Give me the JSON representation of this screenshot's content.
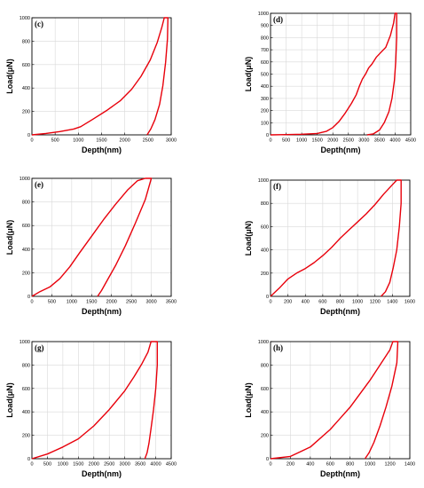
{
  "chart_data": [
    {
      "type": "line",
      "panel": "(c)",
      "xlabel": "Depth(nm)",
      "ylabel": "Load(μN)",
      "xlim": [
        0,
        3000
      ],
      "ylim": [
        0,
        1000
      ],
      "xticks": [
        0,
        500,
        1000,
        1500,
        2000,
        2500,
        3000
      ],
      "yticks": [
        0,
        200,
        400,
        600,
        800,
        1000
      ],
      "series": [
        {
          "x": [
            0,
            300,
            600,
            900,
            1050,
            1300,
            1600,
            1900,
            2150,
            2350,
            2550,
            2700,
            2800,
            2850,
            2930,
            2920,
            2880,
            2820,
            2750,
            2650,
            2560,
            2480
          ],
          "y": [
            0,
            12,
            28,
            50,
            70,
            130,
            205,
            290,
            390,
            500,
            640,
            790,
            920,
            1000,
            1000,
            820,
            620,
            420,
            260,
            130,
            50,
            0
          ]
        }
      ]
    },
    {
      "type": "line",
      "panel": "(d)",
      "xlabel": "Depth(nm)",
      "ylabel": "Load(μN)",
      "xlim": [
        0,
        4500
      ],
      "ylim": [
        0,
        1000
      ],
      "xticks": [
        0,
        500,
        1000,
        1500,
        2000,
        2500,
        3000,
        3500,
        4000,
        4500
      ],
      "yticks": [
        0,
        100,
        200,
        300,
        400,
        500,
        600,
        700,
        800,
        900,
        1000
      ],
      "series": [
        {
          "x": [
            0,
            500,
            1000,
            1500,
            1800,
            2000,
            2200,
            2400,
            2600,
            2750,
            2850,
            2950,
            3050,
            3150,
            3250,
            3400,
            3550,
            3700,
            3850,
            3950,
            4000,
            4050,
            4050,
            4020,
            3980,
            3900,
            3800,
            3650,
            3500,
            3300,
            3100
          ],
          "y": [
            0,
            2,
            5,
            12,
            30,
            60,
            110,
            180,
            260,
            330,
            400,
            460,
            500,
            550,
            580,
            640,
            680,
            720,
            820,
            920,
            1000,
            1000,
            800,
            600,
            450,
            300,
            190,
            100,
            40,
            8,
            0
          ]
        }
      ]
    },
    {
      "type": "line",
      "panel": "(e)",
      "xlabel": "Depth(nm)",
      "ylabel": "Load(μN)",
      "xlim": [
        0,
        3500
      ],
      "ylim": [
        0,
        1000
      ],
      "xticks": [
        0,
        500,
        1000,
        1500,
        2000,
        2500,
        3000,
        3500
      ],
      "yticks": [
        0,
        200,
        400,
        600,
        800,
        1000
      ],
      "series": [
        {
          "x": [
            0,
            200,
            450,
            700,
            950,
            1200,
            1500,
            1800,
            2100,
            2400,
            2650,
            2850,
            2950,
            3000,
            2850,
            2600,
            2350,
            2100,
            1900,
            1750,
            1650
          ],
          "y": [
            0,
            40,
            80,
            150,
            250,
            370,
            510,
            650,
            780,
            900,
            980,
            1000,
            1000,
            1000,
            820,
            620,
            430,
            260,
            140,
            50,
            0
          ]
        }
      ]
    },
    {
      "type": "line",
      "panel": "(f)",
      "xlabel": "Depth(nm)",
      "ylabel": "Load(μN)",
      "xlim": [
        0,
        1600
      ],
      "ylim": [
        0,
        1000
      ],
      "xticks": [
        0,
        200,
        400,
        600,
        800,
        1000,
        1200,
        1400,
        1600
      ],
      "yticks": [
        0,
        200,
        400,
        600,
        800,
        1000
      ],
      "series": [
        {
          "x": [
            0,
            100,
            200,
            300,
            400,
            500,
            600,
            700,
            800,
            900,
            1000,
            1100,
            1200,
            1300,
            1400,
            1450,
            1500,
            1500,
            1480,
            1450,
            1410,
            1370,
            1320,
            1270
          ],
          "y": [
            0,
            70,
            150,
            200,
            240,
            290,
            350,
            420,
            500,
            570,
            640,
            710,
            790,
            880,
            960,
            1000,
            1000,
            800,
            600,
            400,
            250,
            120,
            40,
            0
          ]
        }
      ]
    },
    {
      "type": "line",
      "panel": "(g)",
      "xlabel": "Depth(nm)",
      "ylabel": "Load(μN)",
      "xlim": [
        0,
        4500
      ],
      "ylim": [
        0,
        1000
      ],
      "xticks": [
        0,
        500,
        1000,
        1500,
        2000,
        2500,
        3000,
        3500,
        4000,
        4500
      ],
      "yticks": [
        0,
        200,
        400,
        600,
        800,
        1000
      ],
      "series": [
        {
          "x": [
            0,
            500,
            1000,
            1500,
            2000,
            2500,
            3000,
            3300,
            3550,
            3750,
            3850,
            3950,
            4050,
            4050,
            4000,
            3930,
            3850,
            3780,
            3720,
            3650
          ],
          "y": [
            0,
            40,
            100,
            170,
            280,
            420,
            580,
            700,
            810,
            910,
            1000,
            1000,
            1000,
            800,
            600,
            420,
            260,
            130,
            50,
            0
          ]
        }
      ]
    },
    {
      "type": "line",
      "panel": "(h)",
      "xlabel": "Depth(nm)",
      "ylabel": "Load(μN)",
      "xlim": [
        0,
        1400
      ],
      "ylim": [
        0,
        1000
      ],
      "xticks": [
        0,
        200,
        400,
        600,
        800,
        1000,
        1200,
        1400
      ],
      "yticks": [
        0,
        200,
        400,
        600,
        800,
        1000
      ],
      "series": [
        {
          "x": [
            0,
            200,
            400,
            600,
            800,
            1000,
            1100,
            1200,
            1230,
            1280,
            1270,
            1220,
            1160,
            1100,
            1040,
            990,
            950
          ],
          "y": [
            0,
            20,
            100,
            250,
            440,
            670,
            800,
            930,
            1000,
            1000,
            820,
            620,
            440,
            280,
            140,
            50,
            0
          ]
        }
      ]
    }
  ]
}
